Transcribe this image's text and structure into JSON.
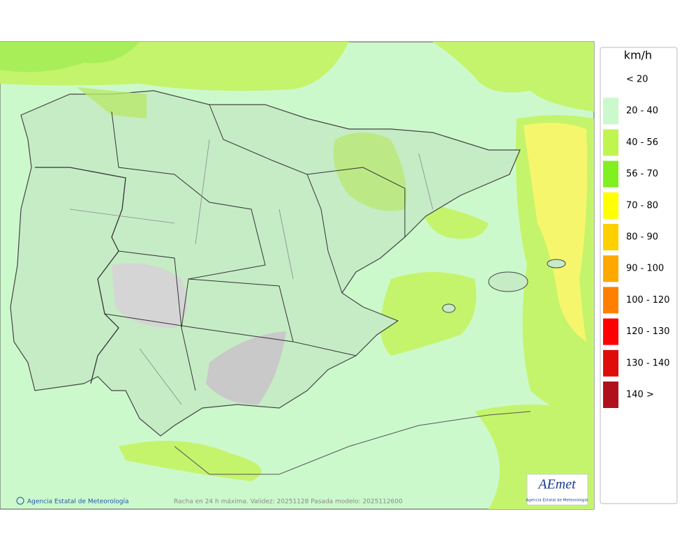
{
  "map": {
    "footer": {
      "credit": "Agencia Estatal de Meteorología",
      "caption": "Racha en 24 h máxima. Validez: 20251128 Pasada modelo: 2025112600"
    },
    "logo": {
      "name": "AEmet",
      "subtitle": "Agencia Estatal de Meteorología"
    },
    "legend": {
      "title": "km/h",
      "items": [
        {
          "label": "< 20"
        },
        {
          "label": "20 - 40",
          "color": "#ccf9cc"
        },
        {
          "label": "40 - 56",
          "color": "#c0f550"
        },
        {
          "label": "56 - 70",
          "color": "#80f020"
        },
        {
          "label": "70 - 80",
          "color": "#ffff00"
        },
        {
          "label": "80 - 90",
          "color": "#ffd000"
        },
        {
          "label": "90 - 100",
          "color": "#ffa800"
        },
        {
          "label": "100 - 120",
          "color": "#ff8000"
        },
        {
          "label": "120 - 130",
          "color": "#ff0000"
        },
        {
          "label": "130 - 140",
          "color": "#e00c0c"
        },
        {
          "label": "140 >",
          "color": "#b0101c"
        }
      ]
    }
  }
}
